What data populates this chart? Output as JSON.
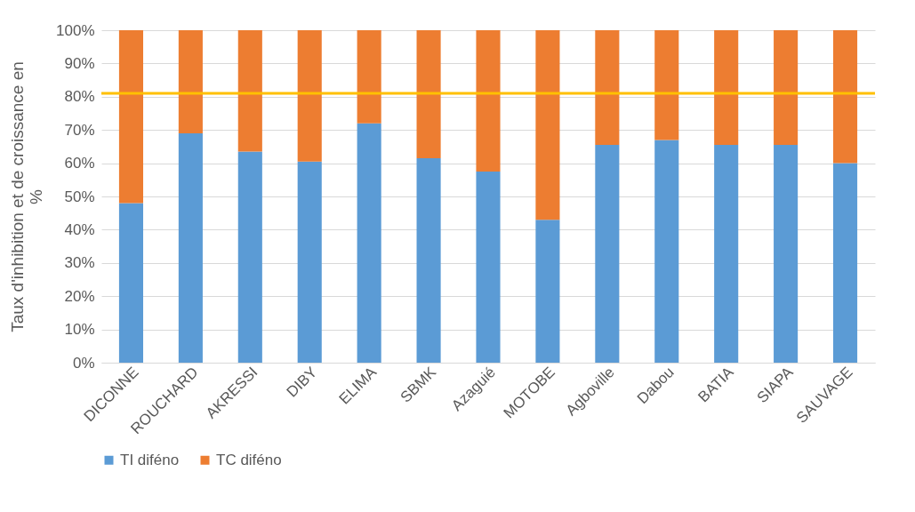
{
  "chart_data": {
    "type": "bar",
    "stacked": true,
    "ylabel": "Taux d'inhibition et de croissance en %",
    "categories": [
      "DICONNE",
      "ROUCHARD",
      "AKRESSI",
      "DIBY",
      "ELIMA",
      "SBMK",
      "Azaguié",
      "MOTOBE",
      "Agboville",
      "Dabou",
      "BATIA",
      "SIAPA",
      "SAUVAGE"
    ],
    "series": [
      {
        "name": "TI diféno",
        "color": "#5b9bd5",
        "values": [
          48,
          69,
          63.5,
          60.5,
          72,
          61.5,
          57.5,
          43,
          65.5,
          67,
          65.5,
          65.5,
          60
        ]
      },
      {
        "name": "TC diféno",
        "color": "#ed7d31",
        "values": [
          52,
          31,
          36.5,
          39.5,
          28,
          38.5,
          42.5,
          57,
          34.5,
          33,
          34.5,
          34.5,
          40
        ]
      }
    ],
    "ylim": [
      0,
      100
    ],
    "yticks": [
      {
        "value": 0,
        "label": "0%"
      },
      {
        "value": 10,
        "label": "10%"
      },
      {
        "value": 20,
        "label": "20%"
      },
      {
        "value": 30,
        "label": "30%"
      },
      {
        "value": 40,
        "label": "40%"
      },
      {
        "value": 50,
        "label": "50%"
      },
      {
        "value": 60,
        "label": "60%"
      },
      {
        "value": 70,
        "label": "70%"
      },
      {
        "value": 80,
        "label": "80%"
      },
      {
        "value": 90,
        "label": "90%"
      },
      {
        "value": 100,
        "label": "100%"
      }
    ],
    "grid": "y",
    "legend": "bottom",
    "ref_lines": [
      {
        "axis": "y",
        "value": 81,
        "color": "#ffc000"
      }
    ]
  }
}
